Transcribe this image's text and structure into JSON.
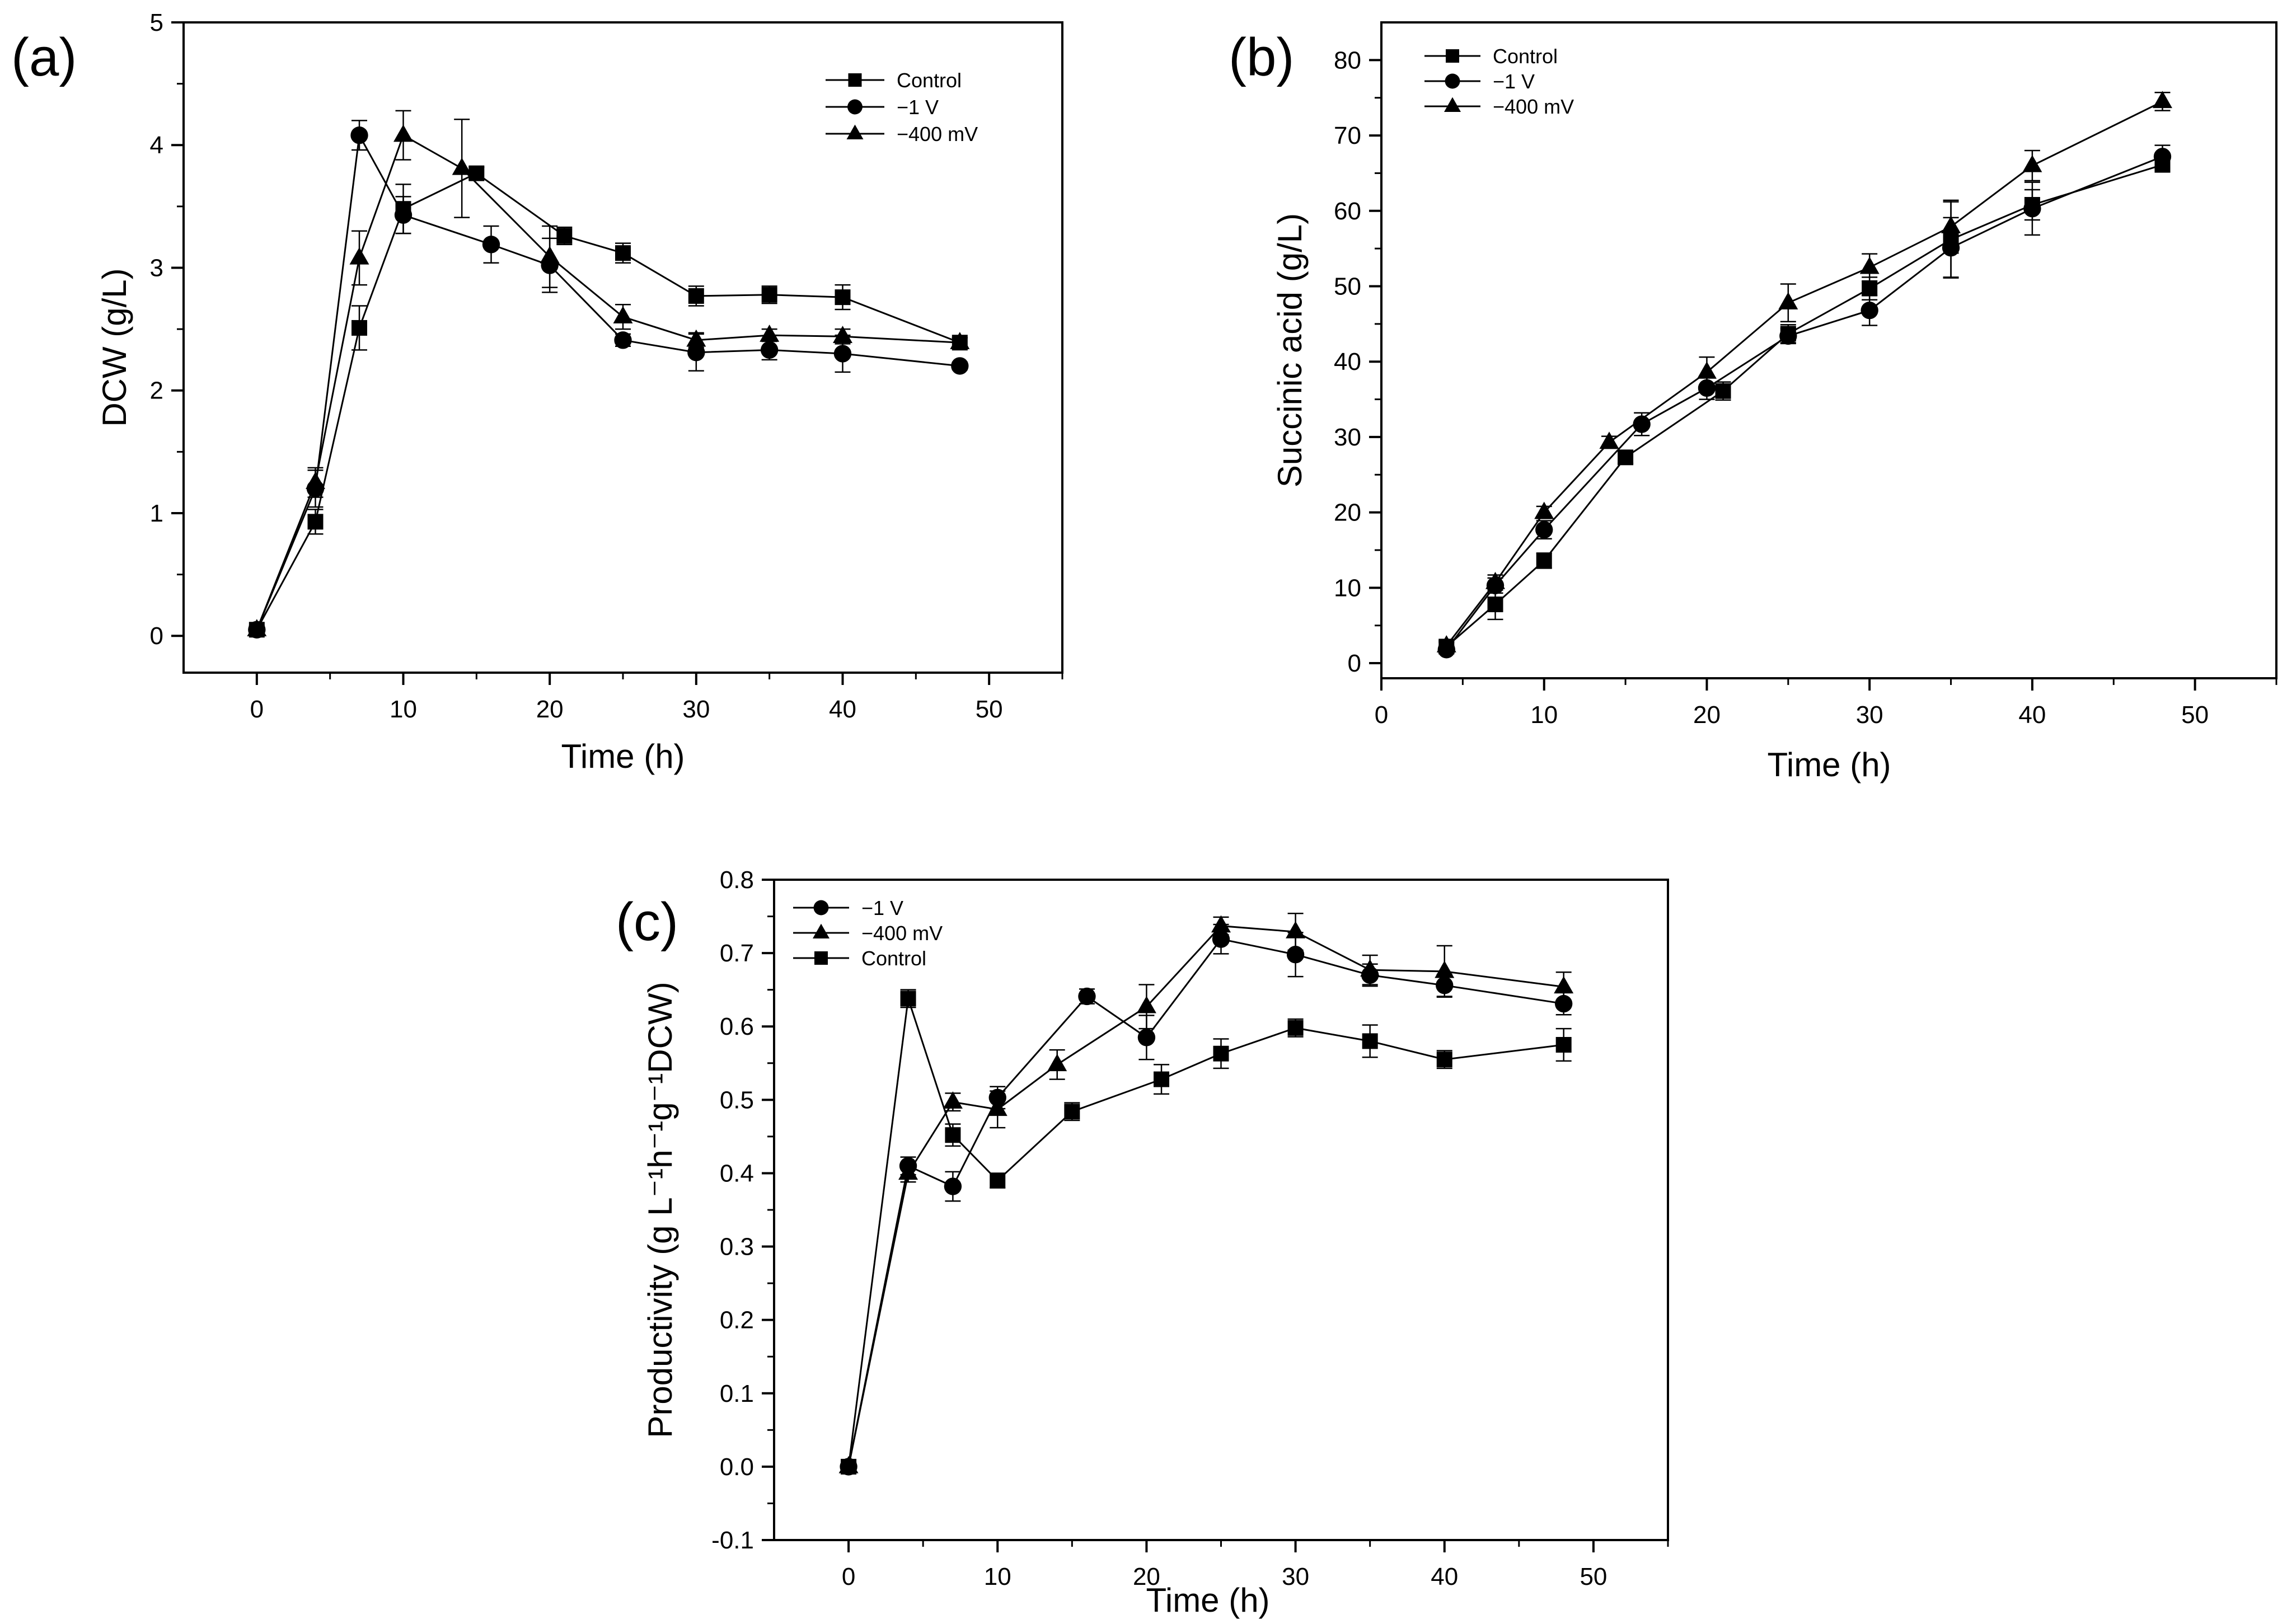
{
  "chart_data": [
    {
      "panel": "(a)",
      "type": "line",
      "xlabel": "Time (h)",
      "ylabel": "DCW (g/L)",
      "xlim": [
        -5,
        55
      ],
      "ylim": [
        -0.3,
        5
      ],
      "xticks": [
        0,
        10,
        20,
        30,
        40,
        50
      ],
      "yticks": [
        0,
        1,
        2,
        3,
        4,
        5
      ],
      "xtick_labels": [
        "0",
        "10",
        "20",
        "30",
        "40",
        "50"
      ],
      "ytick_labels": [
        "0",
        "1",
        "2",
        "3",
        "4",
        "5"
      ],
      "legend_position": "top-right",
      "series": [
        {
          "name": "Control",
          "marker": "square",
          "x": [
            0,
            4,
            7,
            10,
            15,
            21,
            25,
            30,
            35,
            40,
            48
          ],
          "y": [
            0.05,
            0.93,
            2.51,
            3.48,
            3.77,
            3.26,
            3.12,
            2.77,
            2.78,
            2.76,
            2.39
          ],
          "err": [
            0.03,
            0.1,
            0.18,
            0.2,
            0.05,
            0.07,
            0.08,
            0.08,
            0.07,
            0.1,
            0.04
          ]
        },
        {
          "name": "−1 V",
          "marker": "circle",
          "x": [
            0,
            4,
            7,
            10,
            16,
            20,
            25,
            30,
            35,
            40,
            48
          ],
          "y": [
            0.05,
            1.2,
            4.08,
            3.43,
            3.19,
            3.02,
            2.41,
            2.31,
            2.33,
            2.3,
            2.2
          ],
          "err": [
            0.03,
            0.15,
            0.12,
            0.15,
            0.15,
            0.22,
            0.05,
            0.15,
            0.08,
            0.15,
            0.03
          ]
        },
        {
          "name": "−400 mV",
          "marker": "triangle",
          "x": [
            0,
            4,
            7,
            10,
            14,
            20,
            25,
            30,
            35,
            40,
            48
          ],
          "y": [
            0.05,
            1.25,
            3.08,
            4.08,
            3.81,
            3.09,
            2.6,
            2.41,
            2.45,
            2.44,
            2.39
          ],
          "err": [
            0.03,
            0.12,
            0.22,
            0.2,
            0.4,
            0.25,
            0.1,
            0.06,
            0.05,
            0.06,
            0.04
          ]
        }
      ]
    },
    {
      "panel": "(b)",
      "type": "line",
      "xlabel": "Time (h)",
      "ylabel": "Succinic acid (g/L)",
      "xlim": [
        0,
        55
      ],
      "ylim": [
        -2,
        85
      ],
      "xticks": [
        0,
        10,
        20,
        30,
        40,
        50
      ],
      "yticks": [
        0,
        10,
        20,
        30,
        40,
        50,
        60,
        70,
        80
      ],
      "xtick_labels": [
        "0",
        "10",
        "20",
        "30",
        "40",
        "50"
      ],
      "ytick_labels": [
        "0",
        "10",
        "20",
        "30",
        "40",
        "50",
        "60",
        "70",
        "80"
      ],
      "legend_position": "top-left",
      "series": [
        {
          "name": "Control",
          "marker": "square",
          "x": [
            4,
            7,
            10,
            15,
            21,
            25,
            30,
            35,
            40,
            48
          ],
          "y": [
            2.2,
            7.8,
            13.6,
            27.3,
            36.1,
            43.7,
            49.7,
            56.2,
            60.8,
            66.1
          ],
          "err": [
            0.8,
            2.0,
            1.0,
            0.8,
            1.2,
            1.2,
            1.5,
            5.0,
            2.0,
            0.8
          ]
        },
        {
          "name": "−1 V",
          "marker": "circle",
          "x": [
            4,
            7,
            10,
            16,
            20,
            25,
            30,
            35,
            40,
            48
          ],
          "y": [
            1.8,
            10.3,
            17.7,
            31.7,
            36.5,
            43.4,
            46.8,
            55.1,
            60.3,
            67.2
          ],
          "err": [
            0.5,
            1.0,
            1.2,
            1.5,
            1.5,
            1.0,
            2.0,
            4.0,
            3.5,
            1.5
          ]
        },
        {
          "name": "−400 mV",
          "marker": "triangle",
          "x": [
            4,
            7,
            10,
            14,
            20,
            25,
            30,
            35,
            40,
            48
          ],
          "y": [
            2.3,
            10.7,
            20.0,
            29.3,
            38.6,
            47.8,
            52.5,
            57.9,
            66.0,
            74.5
          ],
          "err": [
            0.5,
            1.0,
            0.8,
            0.8,
            2.0,
            2.5,
            1.8,
            3.5,
            2.0,
            1.2
          ]
        }
      ]
    },
    {
      "panel": "(c)",
      "type": "line",
      "xlabel": "Time (h)",
      "ylabel": "Productivity (g L⁻¹h⁻¹g⁻¹DCW)",
      "xlim": [
        -5,
        55
      ],
      "ylim": [
        -0.1,
        0.8
      ],
      "xticks": [
        0,
        10,
        20,
        30,
        40,
        50
      ],
      "yticks": [
        -0.1,
        0.0,
        0.1,
        0.2,
        0.3,
        0.4,
        0.5,
        0.6,
        0.7,
        0.8
      ],
      "xtick_labels": [
        "0",
        "10",
        "20",
        "30",
        "40",
        "50"
      ],
      "ytick_labels": [
        "-0.1",
        "0.0",
        "0.1",
        "0.2",
        "0.3",
        "0.4",
        "0.5",
        "0.6",
        "0.7",
        "0.8"
      ],
      "legend_position": "top-left",
      "series": [
        {
          "name": "−1 V",
          "marker": "circle",
          "x": [
            0,
            4,
            7,
            10,
            16,
            20,
            25,
            30,
            35,
            40,
            48
          ],
          "y": [
            0.0,
            0.41,
            0.382,
            0.503,
            0.641,
            0.585,
            0.719,
            0.698,
            0.67,
            0.656,
            0.631
          ],
          "err": [
            0.005,
            0.012,
            0.02,
            0.015,
            0.01,
            0.03,
            0.02,
            0.03,
            0.015,
            0.015,
            0.015
          ]
        },
        {
          "name": "−400 mV",
          "marker": "triangle",
          "x": [
            0,
            4,
            7,
            10,
            14,
            20,
            25,
            30,
            35,
            40,
            48
          ],
          "y": [
            0.0,
            0.4,
            0.497,
            0.487,
            0.548,
            0.627,
            0.737,
            0.729,
            0.677,
            0.675,
            0.654
          ],
          "err": [
            0.005,
            0.012,
            0.012,
            0.025,
            0.02,
            0.03,
            0.012,
            0.025,
            0.02,
            0.035,
            0.02
          ]
        },
        {
          "name": "Control",
          "marker": "square",
          "x": [
            0,
            4,
            7,
            10,
            15,
            21,
            25,
            30,
            35,
            40,
            48
          ],
          "y": [
            0.0,
            0.638,
            0.452,
            0.39,
            0.484,
            0.528,
            0.563,
            0.598,
            0.58,
            0.555,
            0.575
          ],
          "err": [
            0.005,
            0.012,
            0.015,
            0.01,
            0.012,
            0.02,
            0.02,
            0.012,
            0.022,
            0.012,
            0.022
          ]
        }
      ]
    }
  ]
}
